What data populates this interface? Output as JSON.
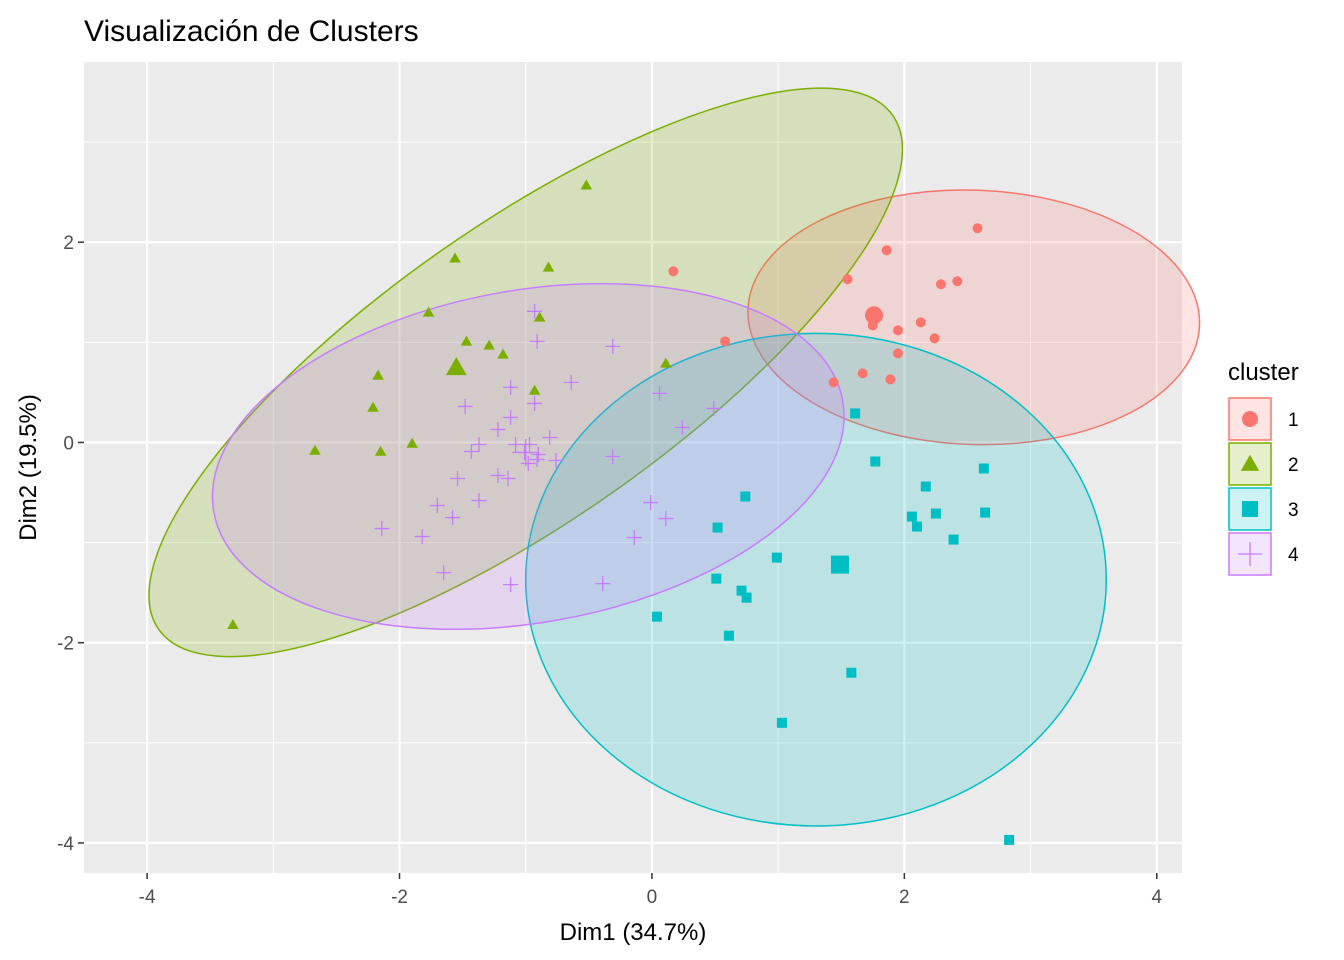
{
  "chart_data": {
    "type": "scatter",
    "title": "Visualización de Clusters",
    "xlabel": "Dim1 (34.7%)",
    "ylabel": "Dim2 (19.5%)",
    "xlim": [
      -4.5,
      4.2
    ],
    "ylim": [
      -4.3,
      3.8
    ],
    "x_ticks": [
      -4,
      -2,
      0,
      2,
      4
    ],
    "y_ticks": [
      -4,
      -2,
      0,
      2
    ],
    "x_tick_labels": [
      "-4",
      "-2",
      "0",
      "2",
      "4"
    ],
    "y_tick_labels": [
      "-4",
      "-2",
      "0",
      "2"
    ],
    "grid": true,
    "legend": {
      "title": "cluster",
      "position": "right",
      "items": [
        "1",
        "2",
        "3",
        "4"
      ]
    },
    "series": [
      {
        "name": "1",
        "shape": "circle",
        "color": "#F8766D",
        "center": [
          1.76,
          1.27
        ],
        "ellipse": {
          "cx": 2.55,
          "cy": 1.25,
          "rx": 1.79,
          "ry": 1.27,
          "angle": -2
        },
        "points": [
          [
            0.17,
            1.71
          ],
          [
            0.58,
            1.01
          ],
          [
            1.55,
            1.63
          ],
          [
            1.86,
            1.92
          ],
          [
            2.29,
            1.58
          ],
          [
            2.42,
            1.61
          ],
          [
            2.58,
            2.14
          ],
          [
            1.75,
            1.17
          ],
          [
            1.95,
            1.12
          ],
          [
            2.24,
            1.04
          ],
          [
            2.13,
            1.2
          ],
          [
            1.95,
            0.89
          ],
          [
            1.67,
            0.69
          ],
          [
            1.89,
            0.63
          ],
          [
            1.44,
            0.6
          ]
        ]
      },
      {
        "name": "2",
        "shape": "triangle",
        "color": "#7CAE00",
        "center": [
          -1.55,
          0.75
        ],
        "ellipse": {
          "cx": -1.0,
          "cy": 0.7,
          "rx": 3.55,
          "ry": 1.48,
          "angle": 35
        },
        "points": [
          [
            -0.52,
            2.57
          ],
          [
            -1.56,
            1.84
          ],
          [
            -0.82,
            1.75
          ],
          [
            -1.77,
            1.3
          ],
          [
            -1.47,
            1.01
          ],
          [
            -1.29,
            0.97
          ],
          [
            -1.18,
            0.88
          ],
          [
            -0.89,
            1.25
          ],
          [
            -0.93,
            0.52
          ],
          [
            -2.17,
            0.67
          ],
          [
            -2.21,
            0.35
          ],
          [
            -1.9,
            -0.01
          ],
          [
            -2.15,
            -0.09
          ],
          [
            -2.67,
            -0.08
          ],
          [
            -3.32,
            -1.82
          ],
          [
            0.11,
            0.79
          ]
        ]
      },
      {
        "name": "3",
        "shape": "square",
        "color": "#00BFC4",
        "center": [
          1.49,
          -1.22
        ],
        "ellipse": {
          "cx": 1.3,
          "cy": -1.37,
          "rx": 2.3,
          "ry": 2.46,
          "angle": 0
        },
        "points": [
          [
            1.61,
            0.29
          ],
          [
            1.77,
            -0.19
          ],
          [
            2.17,
            -0.44
          ],
          [
            2.06,
            -0.74
          ],
          [
            2.1,
            -0.84
          ],
          [
            2.25,
            -0.71
          ],
          [
            2.39,
            -0.97
          ],
          [
            2.63,
            -0.26
          ],
          [
            2.64,
            -0.7
          ],
          [
            0.74,
            -0.54
          ],
          [
            0.52,
            -0.85
          ],
          [
            0.99,
            -1.15
          ],
          [
            0.51,
            -1.36
          ],
          [
            0.71,
            -1.48
          ],
          [
            0.75,
            -1.55
          ],
          [
            0.04,
            -1.74
          ],
          [
            0.61,
            -1.93
          ],
          [
            1.58,
            -2.3
          ],
          [
            1.03,
            -2.8
          ],
          [
            2.83,
            -3.97
          ]
        ]
      },
      {
        "name": "4",
        "shape": "cross",
        "color": "#C77CFF",
        "center": [
          -1.0,
          -0.1
        ],
        "ellipse": {
          "cx": -0.98,
          "cy": -0.14,
          "rx": 2.53,
          "ry": 1.66,
          "angle": 10
        },
        "points": [
          [
            -0.93,
            1.31
          ],
          [
            -0.91,
            1.01
          ],
          [
            -0.31,
            0.96
          ],
          [
            -1.12,
            0.55
          ],
          [
            -0.64,
            0.6
          ],
          [
            -0.93,
            0.39
          ],
          [
            -1.48,
            0.36
          ],
          [
            -1.12,
            0.25
          ],
          [
            -1.22,
            0.13
          ],
          [
            -1.08,
            -0.02
          ],
          [
            -0.97,
            -0.02
          ],
          [
            -0.81,
            0.05
          ],
          [
            -1.37,
            -0.02
          ],
          [
            -1.43,
            -0.09
          ],
          [
            -1.01,
            -0.1
          ],
          [
            -0.9,
            -0.12
          ],
          [
            -0.91,
            -0.17
          ],
          [
            -0.76,
            -0.18
          ],
          [
            -0.98,
            -0.21
          ],
          [
            -0.31,
            -0.14
          ],
          [
            -1.22,
            -0.33
          ],
          [
            -1.14,
            -0.36
          ],
          [
            -1.54,
            -0.36
          ],
          [
            -1.37,
            -0.58
          ],
          [
            -1.7,
            -0.63
          ],
          [
            -1.58,
            -0.75
          ],
          [
            -2.14,
            -0.86
          ],
          [
            -1.82,
            -0.94
          ],
          [
            -1.65,
            -1.3
          ],
          [
            -1.12,
            -1.42
          ],
          [
            -0.39,
            -1.41
          ],
          [
            -0.14,
            -0.95
          ],
          [
            -0.01,
            -0.6
          ],
          [
            0.11,
            -0.76
          ],
          [
            0.06,
            0.49
          ],
          [
            0.24,
            0.15
          ],
          [
            0.49,
            0.34
          ]
        ]
      }
    ]
  }
}
